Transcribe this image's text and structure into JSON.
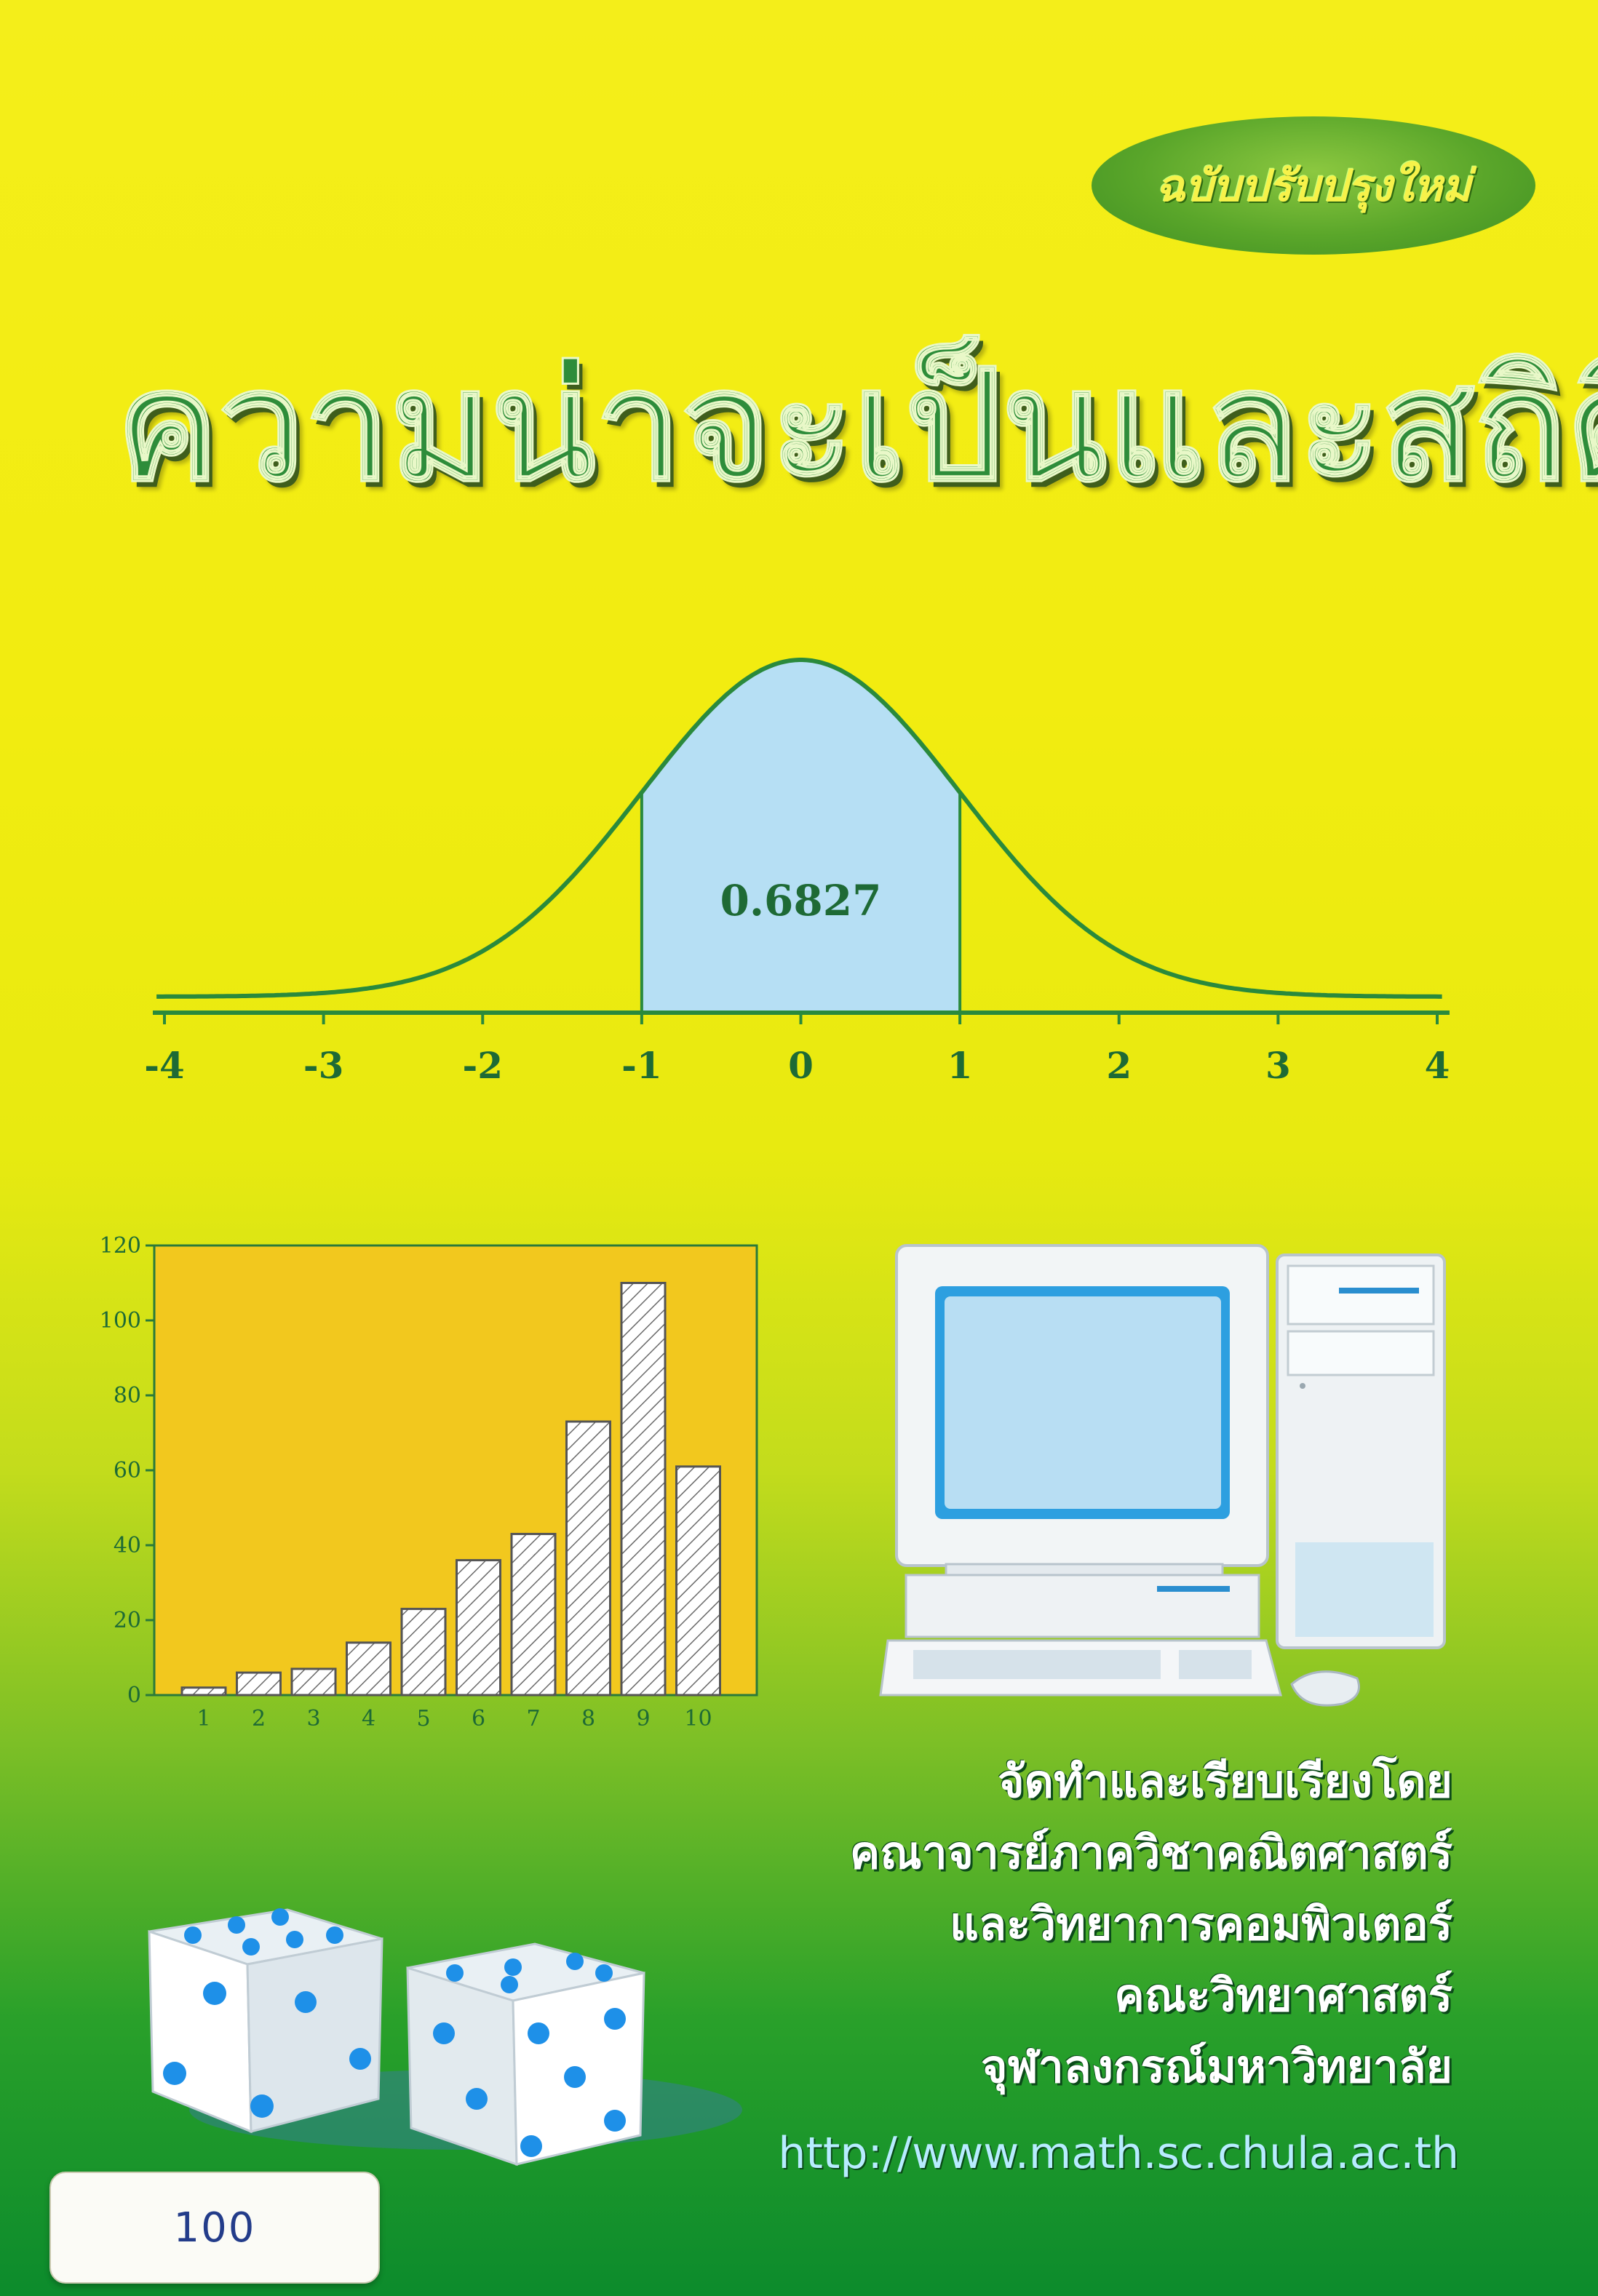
{
  "cover": {
    "edition_badge": "ฉบับปรับปรุงใหม่",
    "title": "ความน่าจะเป็นและสถิติ",
    "credits": [
      "จัดทำและเรียบเรียงโดย",
      "คณาจารย์ภาควิชาคณิตศาสตร์",
      "และวิทยาการคอมพิวเตอร์",
      "คณะวิทยาศาสตร์",
      "จุฬาลงกรณ์มหาวิทยาลัย"
    ],
    "url": "http://www.math.sc.chula.ac.th",
    "price_sticker": "100"
  },
  "colors": {
    "title_green": "#2e8d3a",
    "curve_green": "#2a8a3c",
    "shade_blue": "#b6dff4",
    "axis_text": "#1e6a35"
  },
  "icons": [
    "computer-illustration",
    "dice-illustration"
  ],
  "chart_data": [
    {
      "type": "area",
      "description_kind": "normal-curve",
      "x_ticks": [
        "-4",
        "-3",
        "-2",
        "-1",
        "0",
        "1",
        "2",
        "3",
        "4"
      ],
      "xlim": [
        -4,
        4
      ],
      "shaded_range": [
        -1,
        1
      ],
      "annotation": "0.6827",
      "grid": false
    },
    {
      "type": "bar",
      "categories": [
        "1",
        "2",
        "3",
        "4",
        "5",
        "6",
        "7",
        "8",
        "9",
        "10"
      ],
      "values": [
        2,
        6,
        7,
        14,
        23,
        36,
        43,
        73,
        110,
        61
      ],
      "ylim": [
        0,
        120
      ],
      "y_ticks": [
        "0",
        "20",
        "40",
        "60",
        "80",
        "100",
        "120"
      ],
      "bar_fill": "hatched",
      "plot_background": "#f2c81e",
      "grid": false
    }
  ]
}
